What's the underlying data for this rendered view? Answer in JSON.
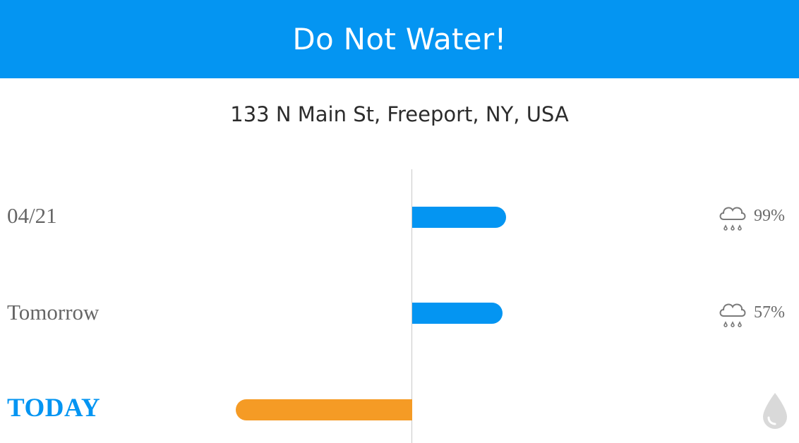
{
  "header": {
    "title": "Do Not Water!"
  },
  "address": "133 N Main St, Freeport, NY, USA",
  "colors": {
    "accent": "#0495f2",
    "today_bar": "#f59b25",
    "icon": "#7a7a7a",
    "drop": "#d9d9d9"
  },
  "rows": [
    {
      "label": "04/21",
      "bar_value": 0.53,
      "icon": "rain-cloud-icon",
      "precip": "99%"
    },
    {
      "label": "Tomorrow",
      "bar_value": 0.51,
      "icon": "rain-cloud-icon",
      "precip": "57%"
    },
    {
      "label": "TODAY",
      "bar_value": -1.0,
      "icon": "water-drop-icon",
      "precip": ""
    }
  ]
}
